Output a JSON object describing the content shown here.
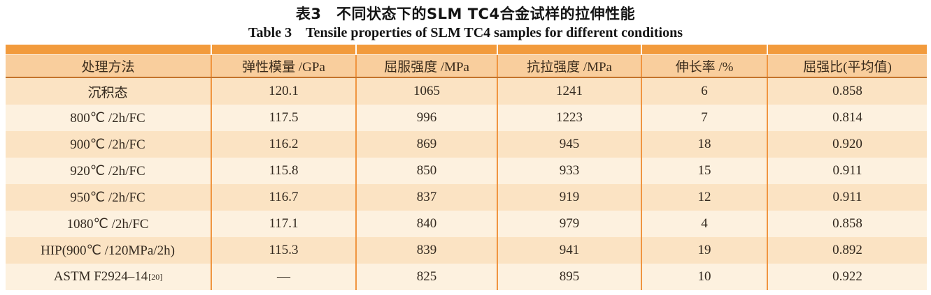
{
  "title": {
    "zh": "表3　不同状态下的SLM TC4合金试样的拉伸性能",
    "en": "Table 3　Tensile properties of SLM TC4 samples for different conditions"
  },
  "table": {
    "headers": [
      "处理方法",
      "弹性模量 /GPa",
      "屈服强度 /MPa",
      "抗拉强度 /MPa",
      "伸长率 /%",
      "屈强比(平均值)"
    ],
    "rows": [
      {
        "method": "沉积态",
        "method_sup": "",
        "modulus": "120.1",
        "yield": "1065",
        "tensile": "1241",
        "elongation": "6",
        "ratio": "0.858"
      },
      {
        "method": "800℃ /2h/FC",
        "method_sup": "",
        "modulus": "117.5",
        "yield": "996",
        "tensile": "1223",
        "elongation": "7",
        "ratio": "0.814"
      },
      {
        "method": "900℃ /2h/FC",
        "method_sup": "",
        "modulus": "116.2",
        "yield": "869",
        "tensile": "945",
        "elongation": "18",
        "ratio": "0.920"
      },
      {
        "method": "920℃ /2h/FC",
        "method_sup": "",
        "modulus": "115.8",
        "yield": "850",
        "tensile": "933",
        "elongation": "15",
        "ratio": "0.911"
      },
      {
        "method": "950℃ /2h/FC",
        "method_sup": "",
        "modulus": "116.7",
        "yield": "837",
        "tensile": "919",
        "elongation": "12",
        "ratio": "0.911"
      },
      {
        "method": "1080℃ /2h/FC",
        "method_sup": "",
        "modulus": "117.1",
        "yield": "840",
        "tensile": "979",
        "elongation": "4",
        "ratio": "0.858"
      },
      {
        "method": "HIP(900℃ /120MPa/2h)",
        "method_sup": "",
        "modulus": "115.3",
        "yield": "839",
        "tensile": "941",
        "elongation": "19",
        "ratio": "0.892"
      },
      {
        "method": "ASTM F2924–14",
        "method_sup": "[20]",
        "modulus": "—",
        "yield": "825",
        "tensile": "895",
        "elongation": "10",
        "ratio": "0.922"
      }
    ]
  },
  "colors": {
    "top_bar": "#F29B3D",
    "header_bg": "#F9CE9D",
    "header_rule": "#C4732B",
    "separator": "#F09540",
    "row_odd_bg": "#FBE3C3",
    "row_even_bg": "#FDF1DF"
  }
}
